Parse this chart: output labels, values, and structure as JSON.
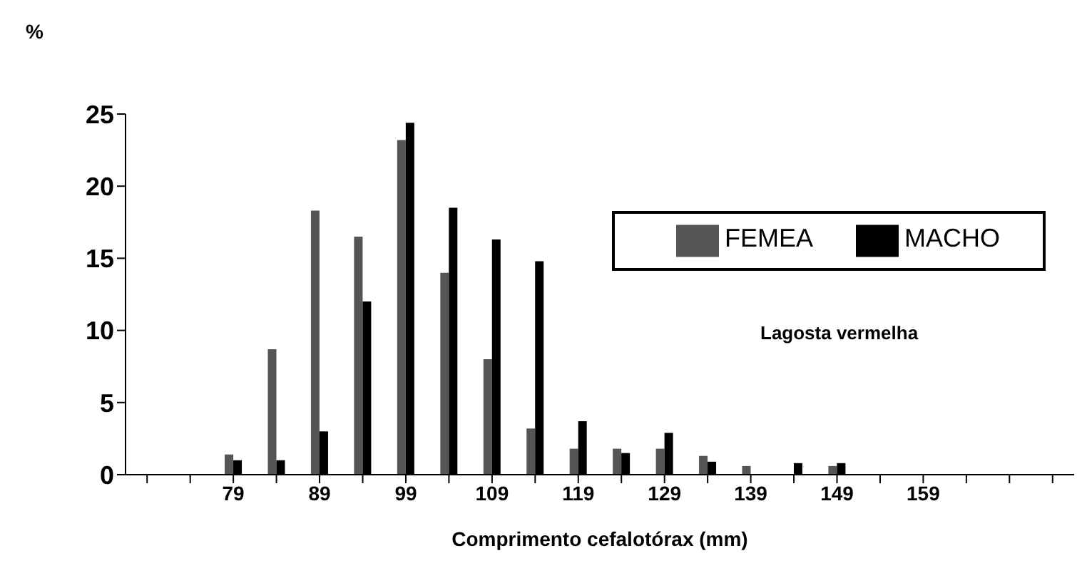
{
  "chart_data": {
    "type": "bar",
    "xlabel": "Comprimento cefalotórax (mm)",
    "ylabel": "%",
    "annotations": [
      "Lagosta vermelha"
    ],
    "categories": [
      null,
      null,
      "79",
      null,
      "89",
      null,
      "99",
      null,
      "109",
      null,
      "119",
      null,
      "129",
      null,
      "139",
      null,
      "149",
      null,
      "159",
      null,
      null,
      null
    ],
    "series": [
      {
        "name": "FEMEA",
        "color": "#555555",
        "values": [
          0,
          0,
          1.4,
          8.7,
          18.3,
          16.5,
          23.2,
          14,
          8,
          3.2,
          1.8,
          1.8,
          1.8,
          1.3,
          0.6,
          0,
          0.6,
          0,
          0,
          0,
          0,
          0
        ]
      },
      {
        "name": "MACHO",
        "color": "#000000",
        "values": [
          0,
          0,
          1,
          1,
          3,
          12,
          24.4,
          18.5,
          16.3,
          14.8,
          3.7,
          1.5,
          2.9,
          0.9,
          0,
          0.8,
          0.8,
          0,
          0,
          0,
          0,
          0
        ]
      }
    ],
    "ylim": [
      0,
      25
    ],
    "yticks": [
      0,
      5,
      10,
      15,
      20,
      25
    ],
    "grid": false,
    "legend": "top right"
  }
}
